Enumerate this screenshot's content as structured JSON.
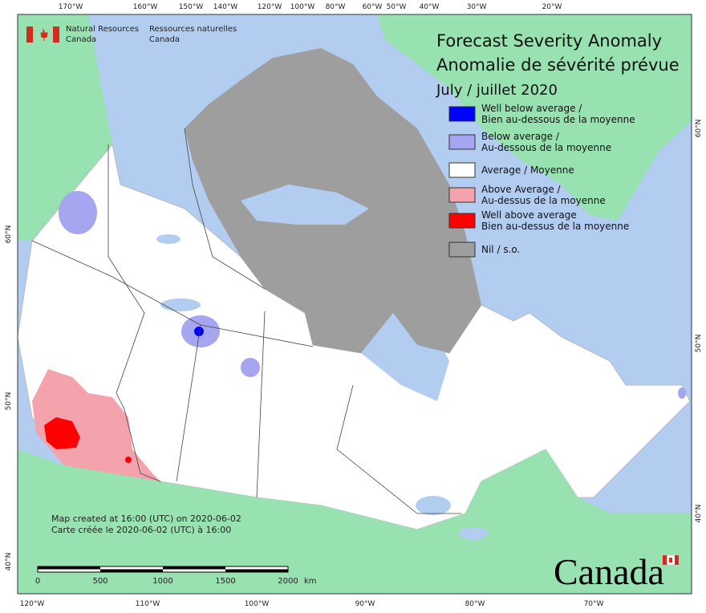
{
  "header": {
    "agency_en": "Natural Resources",
    "agency_en2": "Canada",
    "agency_fr": "Ressources naturelles",
    "agency_fr2": "Canada"
  },
  "title": {
    "line1": "Forecast Severity Anomaly",
    "line2": "Anomalie de sévérité prévue",
    "date": "July / juillet 2020"
  },
  "legend": [
    {
      "label": "Well below average /",
      "label2": "Bien au-dessous de la moyenne",
      "color": "#0000ff"
    },
    {
      "label": "Below average /",
      "label2": "Au-dessous de la moyenne",
      "color": "#a6a6f0"
    },
    {
      "label": "Average / Moyenne",
      "color": "#ffffff"
    },
    {
      "label": "Above Average /",
      "label2": "Au-dessus de la moyenne",
      "color": "#f4a3ad"
    },
    {
      "label": "Well above average",
      "label2": "Bien au-dessus de la moyenne",
      "color": "#ff0000"
    },
    {
      "label": "Nil / s.o.",
      "color": "#9e9e9e"
    }
  ],
  "top_labels": [
    "170°W",
    "160°W",
    "150°W",
    "140°W",
    "120°W",
    "100°W",
    "80°W",
    "60°W",
    "50°W",
    "40°W",
    "30°W",
    "20°W"
  ],
  "bottom_labels": [
    "120°W",
    "110°W",
    "100°W",
    "90°W",
    "80°W",
    "70°W"
  ],
  "left_labels": [
    "60°N",
    "50°N",
    "40°N"
  ],
  "right_labels": [
    "60°N",
    "50°N",
    "40°N"
  ],
  "credit": [
    "Map created at 16:00 (UTC) on 2020-06-02",
    "Carte créée le 2020-06-02 (UTC) à 16:00"
  ],
  "scale": {
    "ticks": [
      0,
      500,
      1000,
      1500,
      2000
    ],
    "unit": "km"
  },
  "wordmark": "Canada"
}
